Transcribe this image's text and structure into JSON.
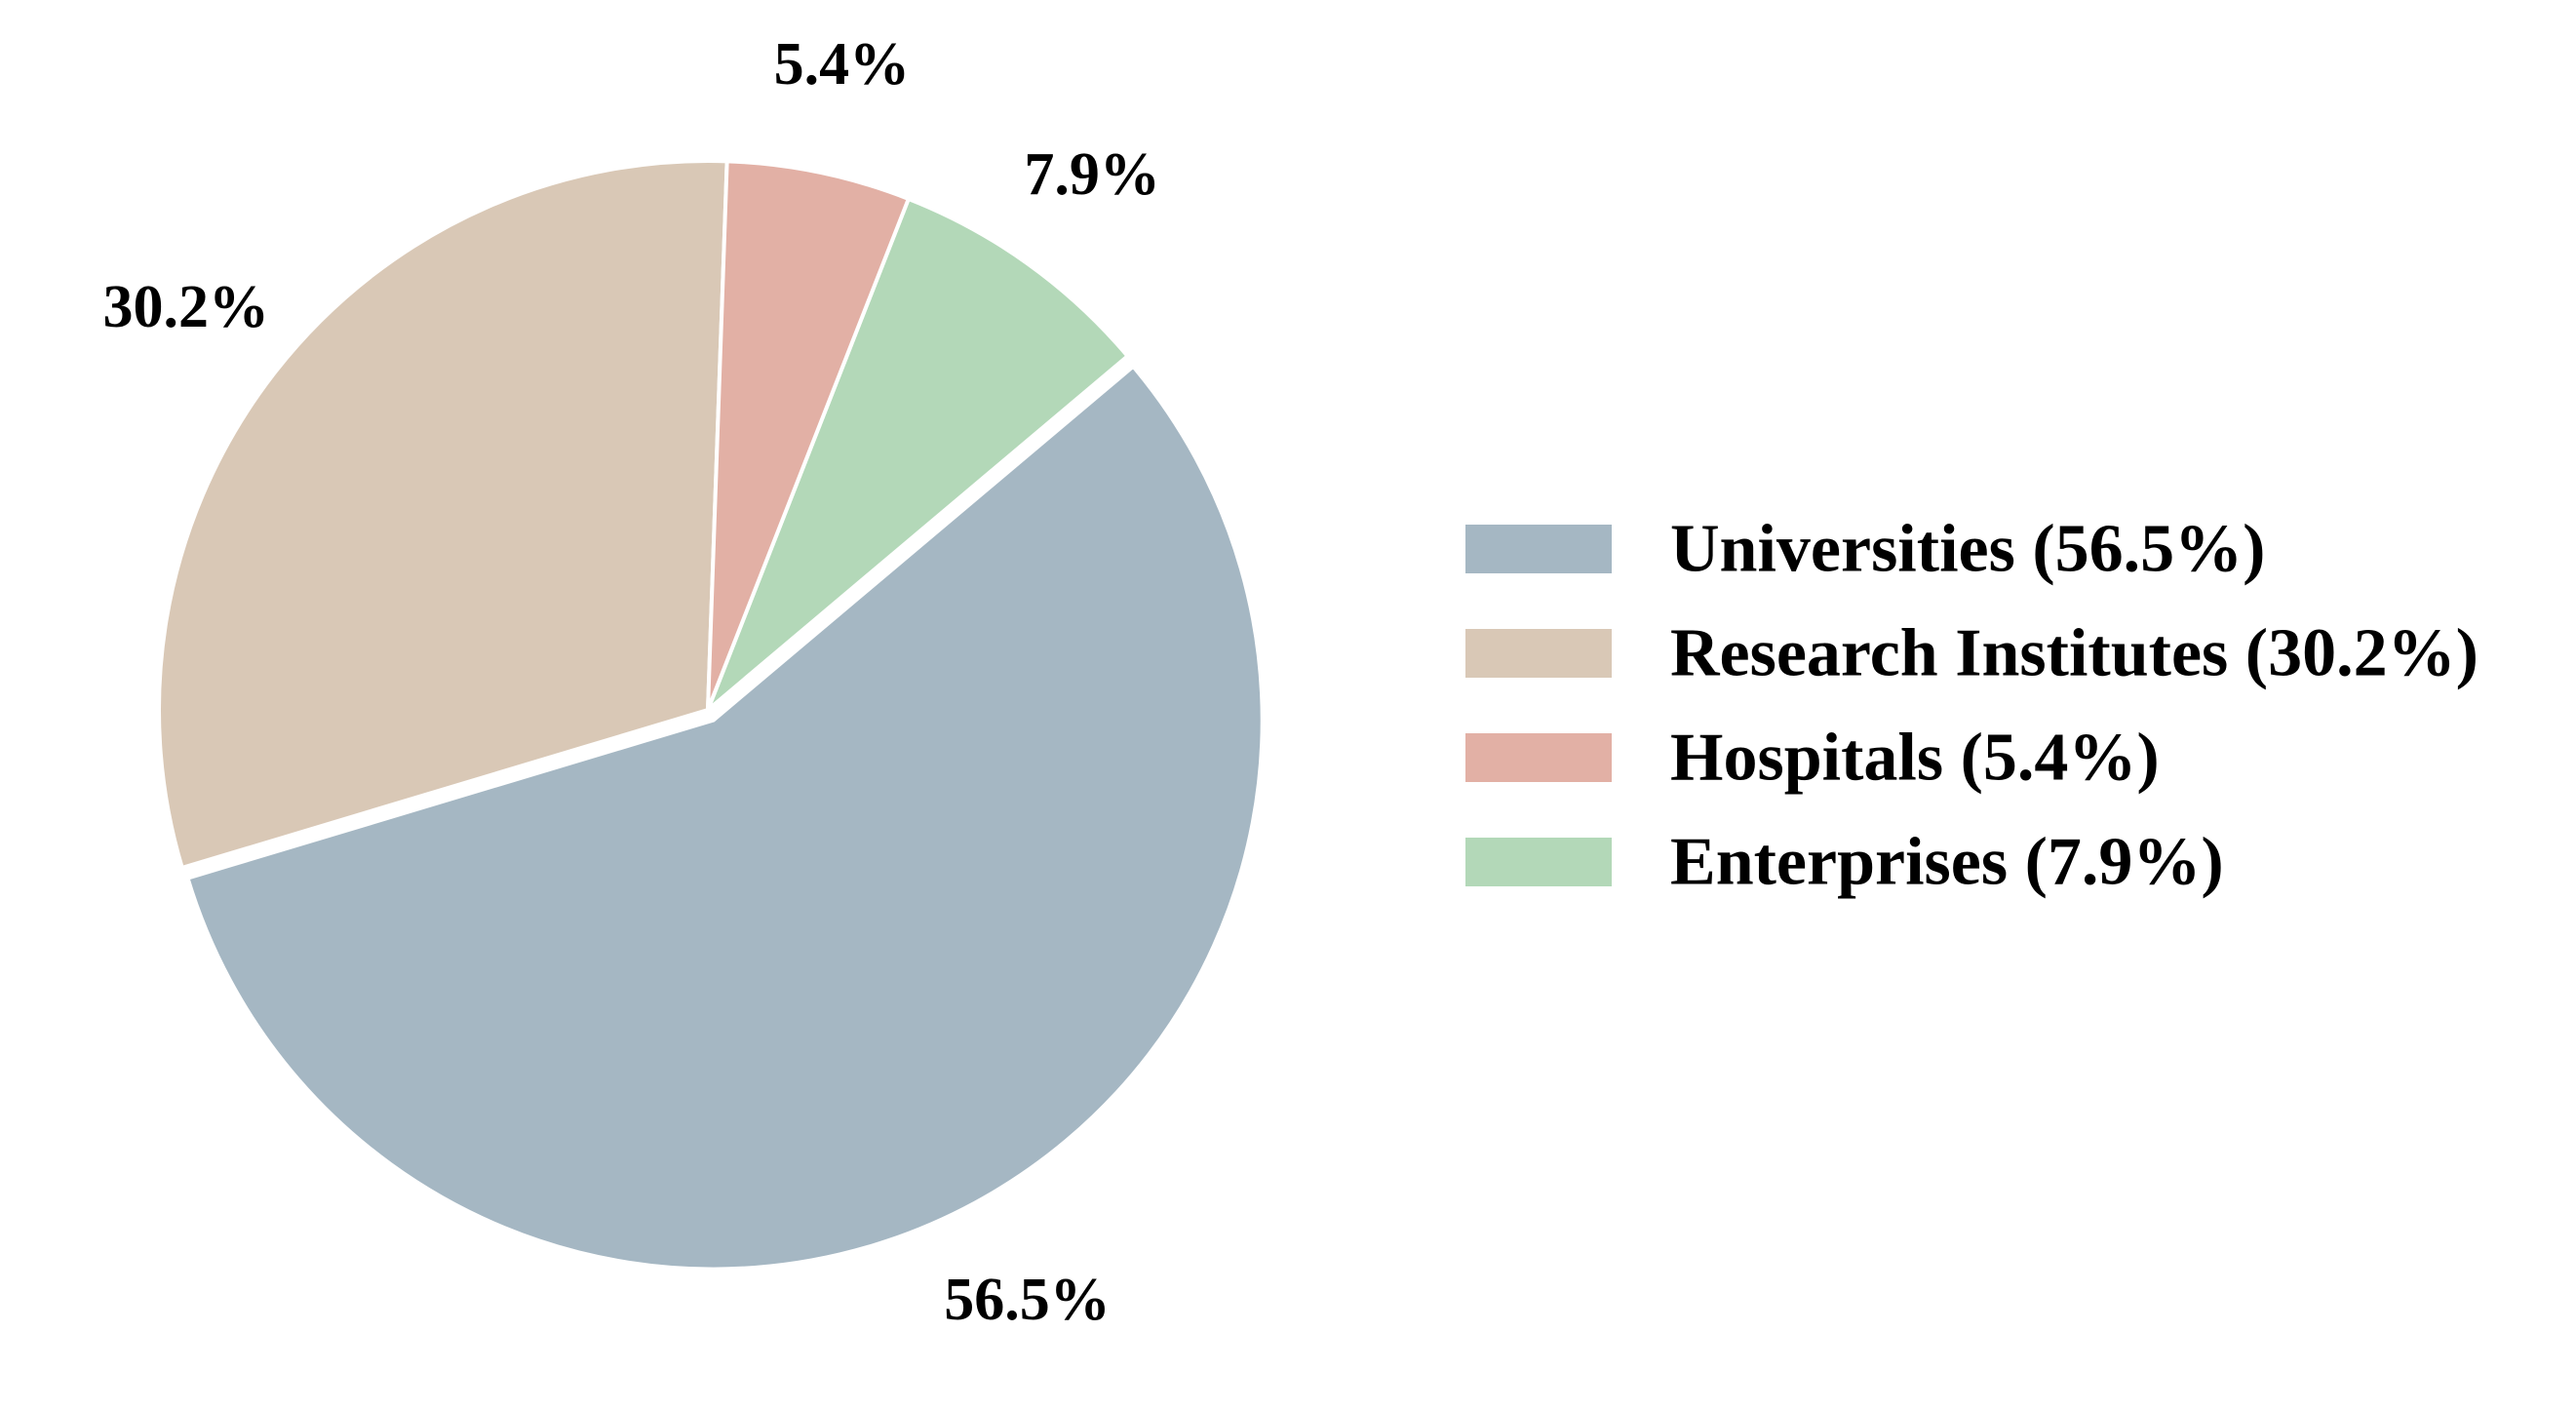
{
  "chart_data": {
    "type": "pie",
    "title": "",
    "legend_position": "right",
    "slices": [
      {
        "name": "Research Institutes",
        "value": 30.2,
        "label": "30.2%",
        "legend_label": "Research Institutes (30.2%)",
        "color": "#D9C8B6",
        "explode": false
      },
      {
        "name": "Universities",
        "value": 56.5,
        "label": "56.5%",
        "legend_label": "Universities (56.5%)",
        "color": "#A5B7C3",
        "explode": true
      },
      {
        "name": "Enterprises",
        "value": 7.9,
        "label": "7.9%",
        "legend_label": "Enterprises (7.9%)",
        "color": "#B3D8B8",
        "explode": false
      },
      {
        "name": "Hospitals",
        "value": 5.4,
        "label": "5.4%",
        "legend_label": "Hospitals (5.4%)",
        "color": "#E2B0A5",
        "explode": false
      }
    ],
    "legend_order": [
      "Universities",
      "Research Institutes",
      "Hospitals",
      "Enterprises"
    ]
  }
}
